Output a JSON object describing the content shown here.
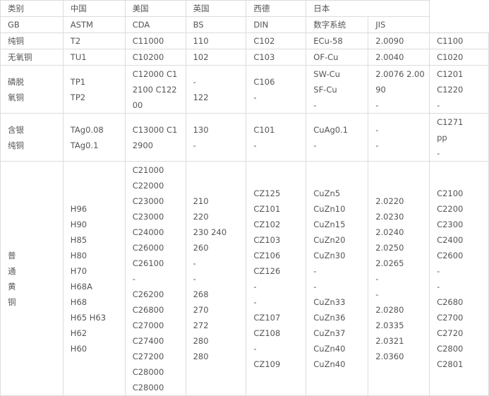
{
  "header_row1": [
    "类别",
    "中国",
    "美国",
    "英国",
    "西德",
    "日本"
  ],
  "header_row2": [
    "GB",
    "ASTM",
    "CDA",
    "BS",
    "DIN",
    "数字系统",
    "JIS"
  ],
  "rows": [
    {
      "cells": [
        "纯铜",
        "T2",
        "C11000",
        "110",
        "C102",
        "ECu-58",
        "2.0090",
        "C1100"
      ]
    },
    {
      "cells": [
        "无氧铜",
        "TU1",
        "C10200",
        "102",
        "C103",
        "OF-Cu",
        "2.0040",
        "C1020"
      ]
    },
    {
      "cells": [
        "磷脱\n氧铜",
        "TP1\nTP2",
        "C12000 C1\n2100 C122\n00",
        "-\n122",
        "C106\n-",
        "SW-Cu\nSF-Cu\n-",
        "2.0076 2.00\n90\n-",
        "C1201\nC1220\n-"
      ]
    },
    {
      "cells": [
        "含银\n纯铜",
        "TAg0.08\nTAg0.1",
        "C13000 C1\n2900",
        "130\n-",
        "C101\n-",
        "CuAg0.1\n-",
        "-\n-",
        "C1271\npp\n-"
      ]
    },
    {
      "cells": [
        "普\n通\n黄\n铜",
        "H96\nH90\nH85\nH80\nH70\nH68A\nH68\nH65 H63\nH62\nH60",
        "C21000\nC22000\nC23000\nC23000\nC24000\nC26000\nC26100\n-\nC26200\nC26800\nC27000\nC27400\nC27200\nC28000\nC28000",
        "210\n220\n230 240\n260\n-\n-\n268\n270\n272\n280\n280",
        "CZ125\nCZ101\nCZ102\nCZ103\nCZ106\nCZ126\n-\n-\nCZ107\nCZ108\n-\nCZ109",
        "CuZn5\nCuZn10\nCuZn15\nCuZn20\nCuZn30\n-\n-\nCuZn33\nCuZn36\nCuZn37\nCuZn40\nCuZn40",
        "2.0220\n2.0230\n2.0240\n2.0250\n2.0265\n-\n-\n2.0280\n2.0335\n2.0321\n2.0360",
        "C2100\nC2200\nC2300\nC2400\nC2600\n-\n-\nC2680\nC2700\nC2720\nC2800\nC2801"
      ]
    }
  ]
}
